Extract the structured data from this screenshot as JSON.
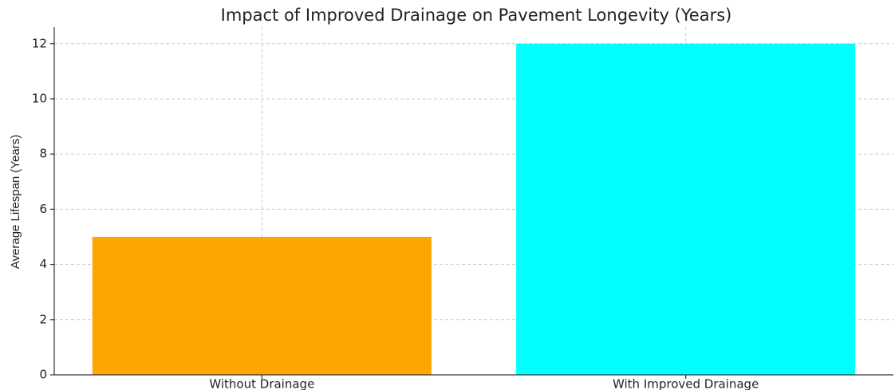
{
  "chart_data": {
    "type": "bar",
    "title": "Impact of Improved Drainage on Pavement Longevity (Years)",
    "y_label": "Average Lifespan (Years)",
    "categories": [
      "Without Drainage",
      "With Improved Drainage"
    ],
    "values": [
      5,
      12
    ],
    "colors": [
      "#ffa500",
      "#00ffff"
    ],
    "ylim": [
      0,
      12.6
    ],
    "yticks": [
      0,
      2,
      4,
      6,
      8,
      10,
      12
    ],
    "grid": true
  }
}
